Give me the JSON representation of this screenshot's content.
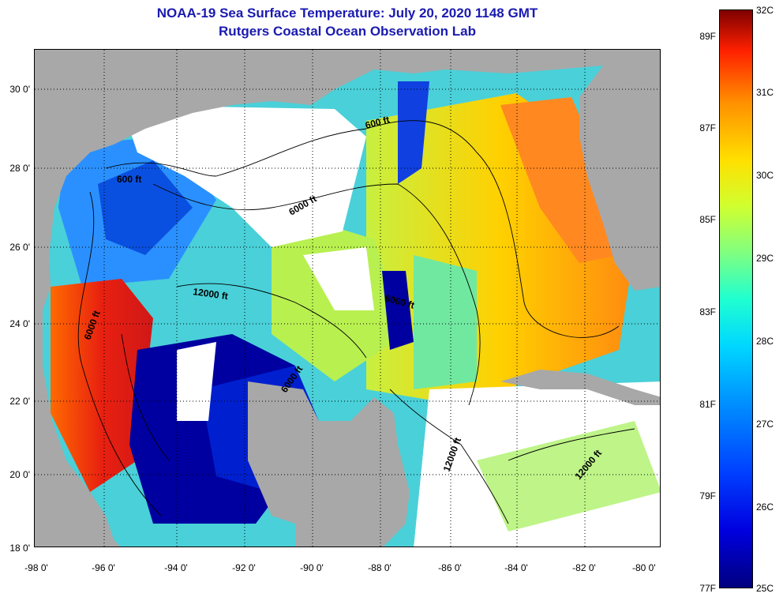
{
  "title": {
    "line1": "NOAA-19 Sea Surface Temperature:  July 20, 2020 1148 GMT",
    "line2": "Rutgers Coastal Ocean Observation Lab"
  },
  "map": {
    "lat_labels": [
      "30 0'",
      "28 0'",
      "26 0'",
      "24 0'",
      "22 0'",
      "20 0'",
      "18 0'"
    ],
    "lon_labels": [
      "-98 0'",
      "-96 0'",
      "-94 0'",
      "-92 0'",
      "-90 0'",
      "-88 0'",
      "-86 0'",
      "-84 0'",
      "-82 0'",
      "-80 0'"
    ],
    "contour_labels": [
      "600 ft",
      "600 ft",
      "6000 ft",
      "12000 ft",
      "6000 ft",
      "6000 ft",
      "6000 ft",
      "12000 ft",
      "12000 ft"
    ],
    "colors": {
      "land": "#a8a8a8",
      "cloud": "#ffffff",
      "grid": "#000000"
    }
  },
  "colorbar": {
    "fahrenheit_labels": [
      "89F",
      "87F",
      "85F",
      "83F",
      "81F",
      "79F",
      "77F"
    ],
    "celsius_labels": [
      "32C",
      "31C",
      "30C",
      "29C",
      "28C",
      "27C",
      "26C",
      "25C"
    ],
    "min_c": 25,
    "max_c": 32
  }
}
